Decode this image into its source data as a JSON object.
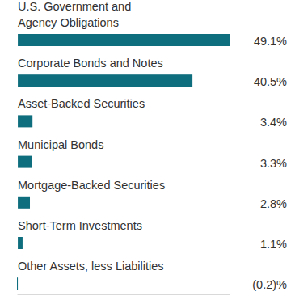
{
  "chart_data": {
    "type": "bar",
    "orientation": "horizontal",
    "categories": [
      "U.S. Government and\nAgency Obligations",
      "Corporate Bonds and Notes",
      "Asset-Backed Securities",
      "Municipal Bonds",
      "Mortgage-Backed Securities",
      "Short-Term Investments",
      "Other Assets, less Liabilities"
    ],
    "values": [
      49.1,
      40.5,
      3.4,
      3.3,
      2.8,
      1.1,
      -0.2
    ],
    "value_labels": [
      "49.1%",
      "40.5%",
      "3.4%",
      "3.3%",
      "2.8%",
      "1.1%",
      "(0.2)%"
    ],
    "color": "#0f6e7d",
    "xlim": [
      -0.2,
      49.1
    ],
    "data_labels": true,
    "tick_labels": false,
    "grid": false
  }
}
